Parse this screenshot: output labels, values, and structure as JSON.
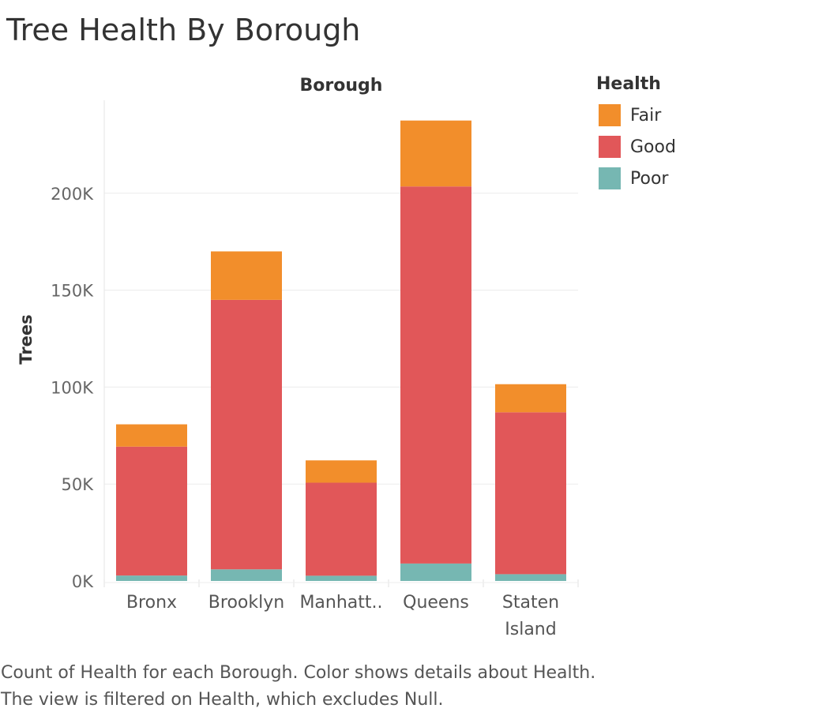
{
  "page": {
    "title": "Tree Health By Borough",
    "caption": "Count of Health for each Borough.  Color shows details about Health. The view is filtered on Health, which excludes Null."
  },
  "legend": {
    "title": "Health",
    "items": [
      {
        "label": "Fair",
        "color": "#f28e2b"
      },
      {
        "label": "Good",
        "color": "#e15759"
      },
      {
        "label": "Poor",
        "color": "#76b7b2"
      }
    ]
  },
  "chart_data": {
    "type": "bar",
    "stacked": true,
    "column_header": "Borough",
    "ylabel": "Trees",
    "xlabel": "",
    "categories": [
      "Bronx",
      "Brooklyn",
      "Manhatt..",
      "Queens",
      "Staten Island"
    ],
    "series": [
      {
        "name": "Poor",
        "color": "#76b7b2",
        "values": [
          2800,
          6000,
          2700,
          9000,
          3500
        ]
      },
      {
        "name": "Good",
        "color": "#e15759",
        "values": [
          66500,
          139000,
          48000,
          194500,
          83500
        ]
      },
      {
        "name": "Fair",
        "color": "#f28e2b",
        "values": [
          11500,
          25000,
          11500,
          34000,
          14500
        ]
      }
    ],
    "ylim": [
      0,
      240000
    ],
    "yticks": [
      {
        "value": 0,
        "label": "0K"
      },
      {
        "value": 50000,
        "label": "50K"
      },
      {
        "value": 100000,
        "label": "100K"
      },
      {
        "value": 150000,
        "label": "150K"
      },
      {
        "value": 200000,
        "label": "200K"
      }
    ],
    "grid": true,
    "legend_position": "right"
  }
}
